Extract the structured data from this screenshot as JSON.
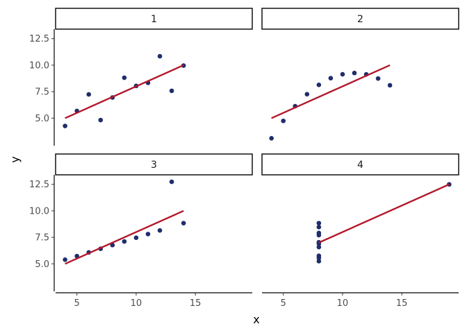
{
  "chart_data": {
    "type": "scatter",
    "xlabel": "x",
    "ylabel": "y",
    "x_ticks": [
      5,
      10,
      15
    ],
    "y_ticks": [
      "5.0",
      "7.5",
      "10.0",
      "12.5"
    ],
    "xlim": [
      3.2,
      19.8
    ],
    "ylim": [
      2.4,
      13.4
    ],
    "grid": false,
    "point_color": "#1f2e6b",
    "line_color": "#b2182b",
    "panels": [
      {
        "name": "1",
        "x": [
          10,
          8,
          13,
          9,
          11,
          14,
          6,
          4,
          12,
          7,
          5
        ],
        "y": [
          8.04,
          6.95,
          7.58,
          8.81,
          8.33,
          9.96,
          7.24,
          4.26,
          10.84,
          4.82,
          5.68
        ],
        "fit": {
          "x": [
            4,
            14
          ],
          "y": [
            5.0,
            10.0
          ]
        }
      },
      {
        "name": "2",
        "x": [
          10,
          8,
          13,
          9,
          11,
          14,
          6,
          4,
          12,
          7,
          5
        ],
        "y": [
          9.14,
          8.14,
          8.74,
          8.77,
          9.26,
          8.1,
          6.13,
          3.1,
          9.13,
          7.26,
          4.74
        ],
        "fit": {
          "x": [
            4,
            14
          ],
          "y": [
            5.0,
            10.0
          ]
        }
      },
      {
        "name": "3",
        "x": [
          10,
          8,
          13,
          9,
          11,
          14,
          6,
          4,
          12,
          7,
          5
        ],
        "y": [
          7.46,
          6.77,
          12.74,
          7.11,
          7.81,
          8.84,
          6.08,
          5.39,
          8.15,
          6.42,
          5.73
        ],
        "fit": {
          "x": [
            4,
            14
          ],
          "y": [
            5.0,
            10.0
          ]
        }
      },
      {
        "name": "4",
        "x": [
          8,
          8,
          8,
          8,
          8,
          8,
          8,
          19,
          8,
          8,
          8
        ],
        "y": [
          6.58,
          5.76,
          7.71,
          8.84,
          8.47,
          7.04,
          5.25,
          12.5,
          5.56,
          7.91,
          6.89
        ],
        "fit": {
          "x": [
            8,
            19
          ],
          "y": [
            7.0,
            12.5
          ]
        }
      }
    ]
  }
}
